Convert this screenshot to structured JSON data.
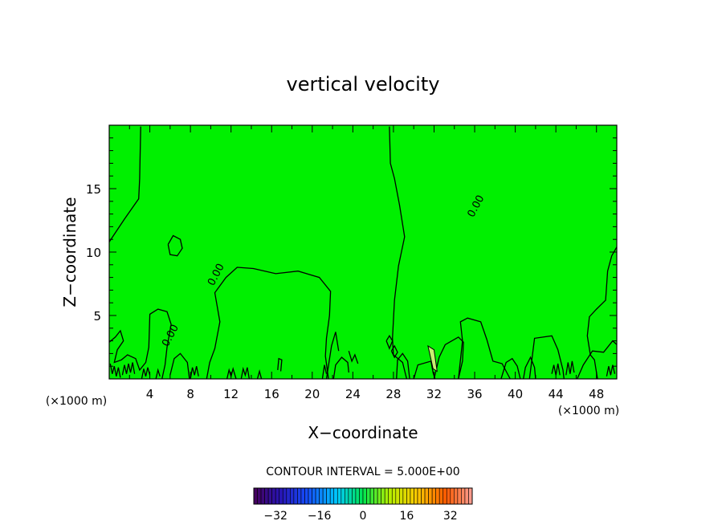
{
  "chart_data": {
    "type": "heatmap",
    "title": "vertical velocity",
    "xlabel": "X−coordinate",
    "ylabel": "Z−coordinate",
    "x_unit": "(×1000 m)",
    "y_unit": "(×1000 m)",
    "xlim": [
      0,
      50
    ],
    "ylim": [
      0,
      20
    ],
    "x_ticks": [
      4,
      8,
      12,
      16,
      20,
      24,
      28,
      32,
      36,
      40,
      44,
      48
    ],
    "x_tick_labels": [
      "4",
      "8",
      "12",
      "16",
      "20",
      "24",
      "28",
      "32",
      "36",
      "40",
      "44",
      "48"
    ],
    "y_ticks": [
      5,
      10,
      15
    ],
    "y_tick_labels": [
      "5",
      "10",
      "15"
    ],
    "field_background_value": 0,
    "contour_interval_text": "CONTOUR INTERVAL = 5.000E+00",
    "contour_level_label": "0.00",
    "contour_labels": [
      {
        "text": "0.00",
        "x": 6.3,
        "z": 3.3
      },
      {
        "text": "0.00",
        "x": 10.8,
        "z": 8.1
      },
      {
        "text": "0.00",
        "x": 36.4,
        "z": 13.5
      }
    ],
    "colorbar": {
      "min": -40,
      "max": 40,
      "tick_values": [
        -32,
        -16,
        0,
        16,
        32
      ],
      "tick_labels": [
        "−32",
        "−16",
        "0",
        "16",
        "32"
      ]
    },
    "colors": {
      "field_green": "#00f000",
      "contour_line": "#000000"
    }
  }
}
